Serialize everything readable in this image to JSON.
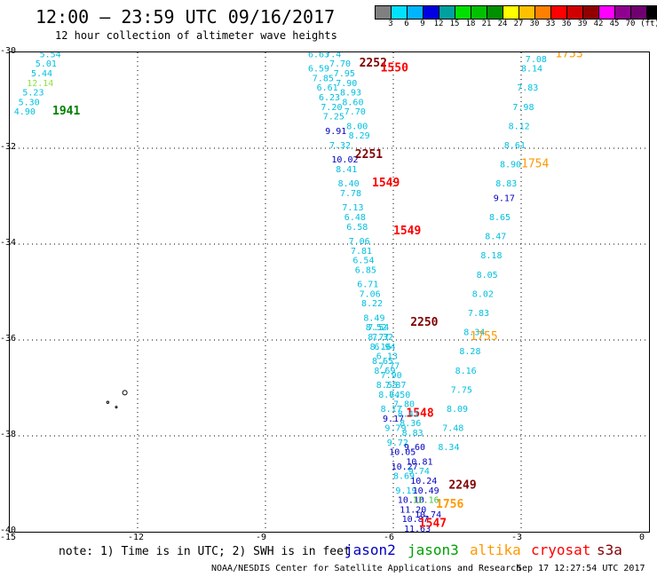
{
  "header": {
    "title": "12:00 – 23:59 UTC 09/16/2017",
    "subtitle": "12 hour collection of altimeter wave heights"
  },
  "colorbar": {
    "colors": [
      "#808080",
      "#00e0ff",
      "#00b4ff",
      "#0000e0",
      "#00a0a0",
      "#00e000",
      "#00c000",
      "#009000",
      "#ffff00",
      "#ffc000",
      "#ff8000",
      "#ff0000",
      "#d00000",
      "#900000",
      "#ff00ff",
      "#900090",
      "#700070",
      "#000000"
    ],
    "labels": [
      "3",
      "6",
      "9",
      "12",
      "15",
      "18",
      "21",
      "24",
      "27",
      "30",
      "33",
      "36",
      "39",
      "42",
      "45",
      "70",
      "(ft)"
    ]
  },
  "map": {
    "lon_range": [
      -15,
      0
    ],
    "lat_range": [
      -40,
      -30
    ],
    "x_ticks": [
      "-15",
      "-12",
      "-9",
      "-6",
      "-3",
      "0"
    ],
    "y_ticks": [
      "-30",
      "-32",
      "-34",
      "-36",
      "-38",
      "-40"
    ]
  },
  "tracks": [
    {
      "id": "track-a",
      "color": "#00bfe0",
      "points": [
        {
          "lon": -14.3,
          "lat": -30.1,
          "v": "5.54"
        },
        {
          "lon": -14.4,
          "lat": -30.3,
          "v": "5.01"
        },
        {
          "lon": -14.5,
          "lat": -30.5,
          "v": "5.44"
        },
        {
          "lon": -14.6,
          "lat": -30.7,
          "v": "12.14",
          "c": "#90e040"
        },
        {
          "lon": -14.7,
          "lat": -30.9,
          "v": "5.23"
        },
        {
          "lon": -14.8,
          "lat": -31.1,
          "v": "5.30"
        },
        {
          "lon": -14.9,
          "lat": -31.3,
          "v": "4.90"
        }
      ],
      "time": {
        "lon": -14.0,
        "lat": -31.3,
        "t": "1941",
        "c": "#008000"
      }
    },
    {
      "id": "track-b",
      "color": "#00bfe0",
      "points": [
        {
          "lon": -7.6,
          "lat": -30.1,
          "v": "7.4"
        },
        {
          "lon": -7.5,
          "lat": -30.3,
          "v": "7.70"
        },
        {
          "lon": -7.4,
          "lat": -30.5,
          "v": "7.95"
        },
        {
          "lon": -7.35,
          "lat": -30.7,
          "v": "7.90"
        },
        {
          "lon": -7.25,
          "lat": -30.9,
          "v": "8.93"
        },
        {
          "lon": -7.2,
          "lat": -31.1,
          "v": "8.60"
        },
        {
          "lon": -7.15,
          "lat": -31.3,
          "v": "7.70"
        },
        {
          "lon": -7.1,
          "lat": -31.6,
          "v": "8.00"
        },
        {
          "lon": -7.05,
          "lat": -31.8,
          "v": "8.29"
        }
      ],
      "time": {
        "lon": -6.8,
        "lat": -30.3,
        "t": "2252",
        "c": "#800000"
      }
    },
    {
      "id": "track-c",
      "color": "#00bfe0",
      "points": [
        {
          "lon": -8.0,
          "lat": -30.1,
          "v": "6.63"
        },
        {
          "lon": -8.0,
          "lat": -30.4,
          "v": "6.59"
        },
        {
          "lon": -7.9,
          "lat": -30.6,
          "v": "7.85"
        },
        {
          "lon": -7.8,
          "lat": -30.8,
          "v": "6.61"
        },
        {
          "lon": -7.75,
          "lat": -31.0,
          "v": "6.23"
        },
        {
          "lon": -7.7,
          "lat": -31.2,
          "v": "7.20"
        },
        {
          "lon": -7.65,
          "lat": -31.4,
          "v": "7.25"
        },
        {
          "lon": -7.6,
          "lat": -31.7,
          "v": "9.91",
          "c": "#0000c0"
        },
        {
          "lon": -7.5,
          "lat": -32.0,
          "v": "7.32"
        },
        {
          "lon": -7.45,
          "lat": -32.3,
          "v": "10.02",
          "c": "#0000c0"
        },
        {
          "lon": -7.35,
          "lat": -32.5,
          "v": "8.41"
        },
        {
          "lon": -7.3,
          "lat": -32.8,
          "v": "8.40"
        },
        {
          "lon": -7.25,
          "lat": -33.0,
          "v": "7.78"
        },
        {
          "lon": -7.2,
          "lat": -33.3,
          "v": "7.13"
        },
        {
          "lon": -7.15,
          "lat": -33.5,
          "v": "6.48"
        },
        {
          "lon": -7.1,
          "lat": -33.7,
          "v": "6.58"
        },
        {
          "lon": -7.05,
          "lat": -34.0,
          "v": "7.06"
        },
        {
          "lon": -7.0,
          "lat": -34.2,
          "v": "7.81"
        },
        {
          "lon": -6.95,
          "lat": -34.4,
          "v": "6.54"
        },
        {
          "lon": -6.9,
          "lat": -34.6,
          "v": "6.85"
        },
        {
          "lon": -6.85,
          "lat": -34.9,
          "v": "6.71"
        },
        {
          "lon": -6.8,
          "lat": -35.1,
          "v": "7.06"
        },
        {
          "lon": -6.75,
          "lat": -35.3,
          "v": "8.22"
        },
        {
          "lon": -6.7,
          "lat": -35.6,
          "v": "8.49"
        },
        {
          "lon": -6.65,
          "lat": -35.8,
          "v": "8.52"
        },
        {
          "lon": -6.6,
          "lat": -36.0,
          "v": "8.77"
        },
        {
          "lon": -6.55,
          "lat": -36.2,
          "v": "8.16"
        },
        {
          "lon": -6.5,
          "lat": -36.5,
          "v": "8.65"
        },
        {
          "lon": -6.45,
          "lat": -36.7,
          "v": "8.69"
        },
        {
          "lon": -6.4,
          "lat": -37.0,
          "v": "8.55"
        },
        {
          "lon": -6.35,
          "lat": -37.2,
          "v": "8.64"
        },
        {
          "lon": -6.3,
          "lat": -37.5,
          "v": "8.17"
        },
        {
          "lon": -6.25,
          "lat": -37.7,
          "v": "9.17",
          "c": "#0000c0"
        },
        {
          "lon": -6.2,
          "lat": -37.9,
          "v": "9.79"
        },
        {
          "lon": -6.15,
          "lat": -38.2,
          "v": "9.72"
        },
        {
          "lon": -6.1,
          "lat": -38.4,
          "v": "10.05",
          "c": "#0000c0"
        },
        {
          "lon": -6.05,
          "lat": -38.7,
          "v": "10.27",
          "c": "#0000c0"
        },
        {
          "lon": -6.0,
          "lat": -38.9,
          "v": "8.69"
        },
        {
          "lon": -5.95,
          "lat": -39.2,
          "v": "9.19"
        },
        {
          "lon": -5.9,
          "lat": -39.4,
          "v": "10.10",
          "c": "#0000c0"
        },
        {
          "lon": -5.85,
          "lat": -39.6,
          "v": "11.20",
          "c": "#0000c0"
        },
        {
          "lon": -5.8,
          "lat": -39.8,
          "v": "10.87",
          "c": "#0000c0"
        },
        {
          "lon": -5.75,
          "lat": -40.0,
          "v": "11.63",
          "c": "#0000c0"
        }
      ],
      "time": {
        "lon": -6.3,
        "lat": -30.4,
        "t": "1550",
        "c": "#ff0000"
      }
    },
    {
      "id": "track-d",
      "color": "#00bfe0",
      "points": [
        {
          "lon": -6.9,
          "lat": -32.2,
          "v": "2251",
          "c": "#800000",
          "bold": true
        },
        {
          "lon": -6.5,
          "lat": -32.8,
          "v": "1549",
          "c": "#ff0000",
          "bold": true
        },
        {
          "lon": -6.0,
          "lat": -33.8,
          "v": "1549",
          "c": "#ff0000",
          "bold": true
        },
        {
          "lon": -5.6,
          "lat": -35.7,
          "v": "2250",
          "c": "#800000",
          "bold": true
        },
        {
          "lon": -5.7,
          "lat": -37.6,
          "v": "1548",
          "c": "#ff0000",
          "bold": true
        },
        {
          "lon": -4.7,
          "lat": -39.1,
          "v": "2249",
          "c": "#800000",
          "bold": true
        },
        {
          "lon": -5.0,
          "lat": -39.5,
          "v": "1756",
          "c": "#ff9900",
          "bold": true
        },
        {
          "lon": -5.4,
          "lat": -39.9,
          "v": "1547",
          "c": "#ff0000",
          "bold": true
        }
      ]
    },
    {
      "id": "track-e",
      "color": "#00bfe0",
      "points": [
        {
          "lon": -6.6,
          "lat": -35.8,
          "v": "7.54"
        },
        {
          "lon": -6.5,
          "lat": -36.0,
          "v": "7.32"
        },
        {
          "lon": -6.45,
          "lat": -36.2,
          "v": "6.94"
        },
        {
          "lon": -6.4,
          "lat": -36.4,
          "v": "6.13"
        },
        {
          "lon": -6.35,
          "lat": -36.6,
          "v": "7.77"
        },
        {
          "lon": -6.3,
          "lat": -36.8,
          "v": "7.90"
        },
        {
          "lon": -6.2,
          "lat": -37.0,
          "v": "7.87"
        },
        {
          "lon": -6.1,
          "lat": -37.2,
          "v": "7.50"
        },
        {
          "lon": -6.0,
          "lat": -37.4,
          "v": "7.80"
        },
        {
          "lon": -5.9,
          "lat": -37.6,
          "v": "8.41"
        },
        {
          "lon": -5.85,
          "lat": -37.8,
          "v": "8.36"
        },
        {
          "lon": -5.8,
          "lat": -38.0,
          "v": "8.83"
        },
        {
          "lon": -5.75,
          "lat": -38.3,
          "v": "9.60",
          "c": "#0000c0"
        },
        {
          "lon": -5.7,
          "lat": -38.6,
          "v": "10.81",
          "c": "#0000c0"
        },
        {
          "lon": -5.65,
          "lat": -38.8,
          "v": "9.74"
        },
        {
          "lon": -5.6,
          "lat": -39.0,
          "v": "10.24",
          "c": "#0000c0"
        },
        {
          "lon": -5.55,
          "lat": -39.2,
          "v": "10.49",
          "c": "#0000c0"
        },
        {
          "lon": -5.55,
          "lat": -39.4,
          "v": "12.16",
          "c": "#40c040"
        },
        {
          "lon": -5.5,
          "lat": -39.7,
          "v": "10.74",
          "c": "#0000c0"
        }
      ]
    },
    {
      "id": "track-f",
      "color": "#00bfe0",
      "points": [
        {
          "lon": -2.8,
          "lat": -30.0,
          "v": "7.73"
        },
        {
          "lon": -2.9,
          "lat": -30.2,
          "v": "7.08"
        },
        {
          "lon": -3.0,
          "lat": -30.4,
          "v": "8.14"
        },
        {
          "lon": -3.1,
          "lat": -30.8,
          "v": "7.83"
        },
        {
          "lon": -3.2,
          "lat": -31.2,
          "v": "7.98"
        },
        {
          "lon": -3.3,
          "lat": -31.6,
          "v": "8.12"
        },
        {
          "lon": -3.4,
          "lat": -32.0,
          "v": "8.61"
        },
        {
          "lon": -3.5,
          "lat": -32.4,
          "v": "8.90"
        },
        {
          "lon": -3.6,
          "lat": -32.8,
          "v": "8.83"
        },
        {
          "lon": -3.65,
          "lat": -33.1,
          "v": "9.17",
          "c": "#0000c0"
        },
        {
          "lon": -3.75,
          "lat": -33.5,
          "v": "8.65"
        },
        {
          "lon": -3.85,
          "lat": -33.9,
          "v": "8.47"
        },
        {
          "lon": -3.95,
          "lat": -34.3,
          "v": "8.18"
        },
        {
          "lon": -4.05,
          "lat": -34.7,
          "v": "8.05"
        },
        {
          "lon": -4.15,
          "lat": -35.1,
          "v": "8.02"
        },
        {
          "lon": -4.25,
          "lat": -35.5,
          "v": "7.83"
        },
        {
          "lon": -4.35,
          "lat": -35.9,
          "v": "8.34"
        },
        {
          "lon": -4.45,
          "lat": -36.3,
          "v": "8.28"
        },
        {
          "lon": -4.55,
          "lat": -36.7,
          "v": "8.16"
        },
        {
          "lon": -4.65,
          "lat": -37.1,
          "v": "7.75"
        },
        {
          "lon": -4.75,
          "lat": -37.5,
          "v": "8.09"
        },
        {
          "lon": -4.85,
          "lat": -37.9,
          "v": "7.48"
        },
        {
          "lon": -4.95,
          "lat": -38.3,
          "v": "8.34"
        }
      ],
      "times": [
        {
          "lon": -2.2,
          "lat": -30.1,
          "t": "1753",
          "c": "#ff9900"
        },
        {
          "lon": -3.0,
          "lat": -32.4,
          "t": "1754",
          "c": "#ff9900"
        },
        {
          "lon": -4.2,
          "lat": -36.0,
          "t": "1755",
          "c": "#ff9900"
        }
      ]
    }
  ],
  "footer": {
    "note": "note: 1) Time is in UTC; 2) SWH is in feet",
    "missions": [
      {
        "name": "jason2",
        "color": "#0000c0"
      },
      {
        "name": "jason3",
        "color": "#00a000"
      },
      {
        "name": "altika",
        "color": "#ff9900"
      },
      {
        "name": "cryosat",
        "color": "#ff0000"
      },
      {
        "name": "s3a",
        "color": "#800000"
      }
    ],
    "credit": "NOAA/NESDIS Center for Satellite Applications and Research",
    "timestamp": "Sep 17 12:27:54 UTC 2017"
  }
}
